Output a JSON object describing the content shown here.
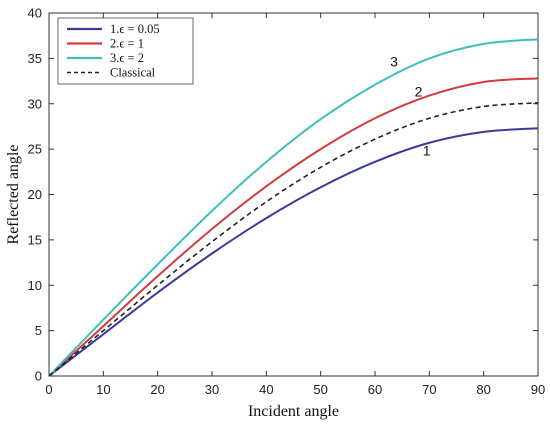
{
  "chart_data": {
    "type": "line",
    "xlabel": "Incident angle",
    "ylabel": "Reflected angle",
    "xlim": [
      0,
      90
    ],
    "ylim": [
      0,
      40
    ],
    "xticks": [
      0,
      10,
      20,
      30,
      40,
      50,
      60,
      70,
      80,
      90
    ],
    "yticks": [
      0,
      5,
      10,
      15,
      20,
      25,
      30,
      35,
      40
    ],
    "grid": false,
    "legend_position": "top-left",
    "x": [
      0,
      10,
      20,
      30,
      40,
      50,
      60,
      70,
      80,
      90
    ],
    "series": [
      {
        "name": "1.ϵ = 0.05",
        "color": "#3a3a9c",
        "style": "solid",
        "values": [
          0,
          4.6,
          9.2,
          13.5,
          17.4,
          20.8,
          23.6,
          25.7,
          26.9,
          27.3
        ]
      },
      {
        "name": "2.ϵ = 1",
        "color": "#d23c3c",
        "style": "solid",
        "values": [
          0,
          5.5,
          11.0,
          16.2,
          20.9,
          25.0,
          28.4,
          30.9,
          32.4,
          32.8
        ]
      },
      {
        "name": "3.ϵ = 2",
        "color": "#3fbfb8",
        "style": "solid",
        "values": [
          0,
          6.2,
          12.3,
          18.2,
          23.6,
          28.3,
          32.1,
          35.0,
          36.6,
          37.1
        ]
      },
      {
        "name": "Classical",
        "color": "#222222",
        "style": "dashed",
        "values": [
          0,
          5.0,
          10.0,
          14.8,
          19.2,
          23.0,
          26.1,
          28.4,
          29.7,
          30.1
        ]
      }
    ],
    "annotations": [
      {
        "text": "1",
        "x": 69.5,
        "y": 24.3
      },
      {
        "text": "2",
        "x": 68.0,
        "y": 30.8
      },
      {
        "text": "3",
        "x": 63.5,
        "y": 34.1
      }
    ]
  }
}
